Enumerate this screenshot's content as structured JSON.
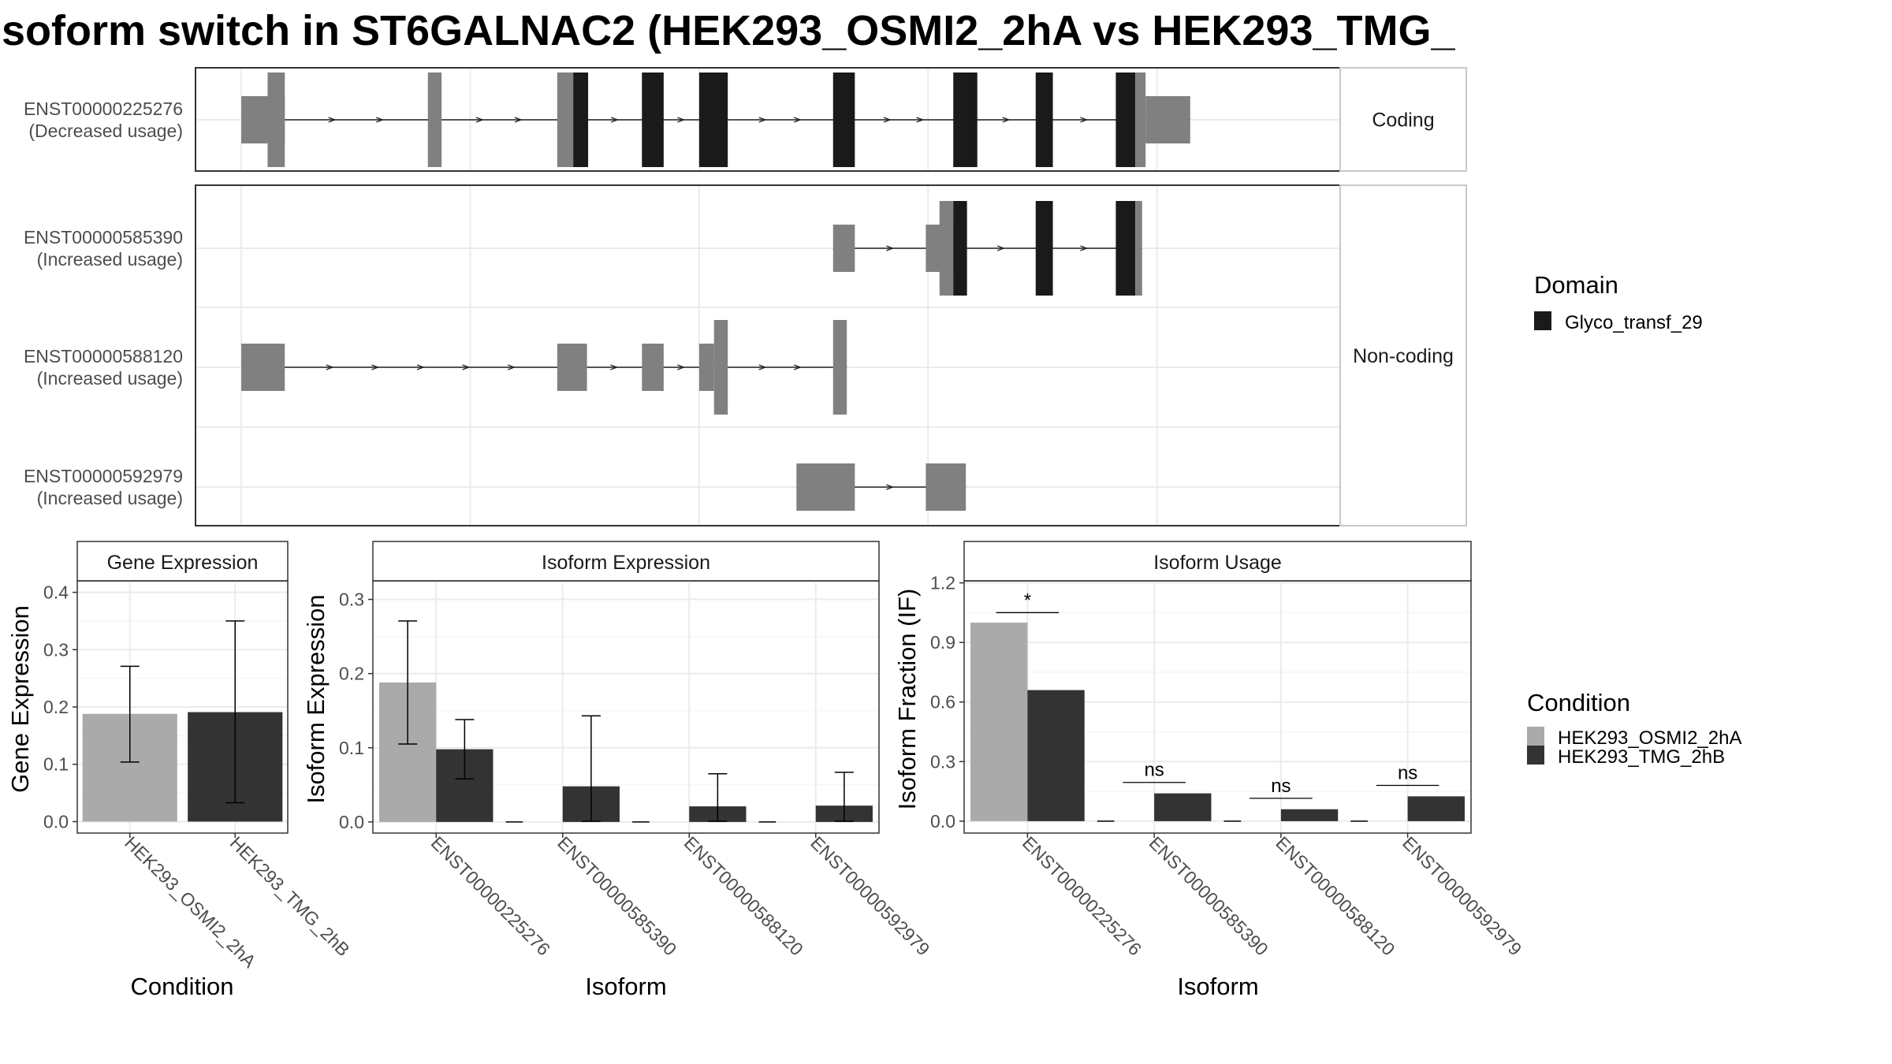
{
  "title": "soform switch in ST6GALNAC2 (HEK293_OSMI2_2hA vs HEK293_TMG_",
  "colors": {
    "domain": "#1a1a1a",
    "exon": "#808080",
    "cond_a": "#aaaaaa",
    "cond_b": "#333333",
    "grid": "#ebebeb",
    "strip_bg": "#ffffff",
    "panel_border": "#333333"
  },
  "structure": {
    "x_range": [
      0,
      100
    ],
    "facets": [
      {
        "label": "Coding"
      },
      {
        "label": "Non-coding"
      }
    ],
    "isoforms": [
      {
        "id": "ENST00000225276",
        "usage": "(Decreased usage)",
        "facet": 0,
        "features": [
          {
            "start": 4,
            "end": 7.8,
            "kind": "utr"
          },
          {
            "start": 6.3,
            "end": 7.8,
            "kind": "exon"
          },
          {
            "start": 20.3,
            "end": 21.5,
            "kind": "exon"
          },
          {
            "start": 31.6,
            "end": 33,
            "kind": "exon"
          },
          {
            "start": 33,
            "end": 34.3,
            "kind": "domain"
          },
          {
            "start": 39,
            "end": 40.9,
            "kind": "domain"
          },
          {
            "start": 44,
            "end": 46.5,
            "kind": "domain"
          },
          {
            "start": 55.7,
            "end": 57.6,
            "kind": "domain"
          },
          {
            "start": 66.2,
            "end": 68.3,
            "kind": "domain"
          },
          {
            "start": 73.4,
            "end": 74.9,
            "kind": "domain"
          },
          {
            "start": 80.4,
            "end": 82.1,
            "kind": "domain"
          },
          {
            "start": 82.1,
            "end": 83,
            "kind": "exon"
          },
          {
            "start": 83,
            "end": 86.9,
            "kind": "utr"
          }
        ]
      },
      {
        "id": "ENST00000585390",
        "usage": "(Increased usage)",
        "facet": 1,
        "features": [
          {
            "start": 55.7,
            "end": 57.6,
            "kind": "utr"
          },
          {
            "start": 63.8,
            "end": 66.2,
            "kind": "utr"
          },
          {
            "start": 65,
            "end": 66.2,
            "kind": "exon"
          },
          {
            "start": 66.2,
            "end": 67.4,
            "kind": "domain"
          },
          {
            "start": 73.4,
            "end": 74.9,
            "kind": "domain"
          },
          {
            "start": 80.4,
            "end": 82.1,
            "kind": "domain"
          },
          {
            "start": 82.1,
            "end": 82.7,
            "kind": "exon"
          }
        ]
      },
      {
        "id": "ENST00000588120",
        "usage": "(Increased usage)",
        "facet": 1,
        "features": [
          {
            "start": 4,
            "end": 7.8,
            "kind": "utr"
          },
          {
            "start": 31.6,
            "end": 34.2,
            "kind": "utr"
          },
          {
            "start": 39,
            "end": 40.9,
            "kind": "utr"
          },
          {
            "start": 44,
            "end": 45.3,
            "kind": "utr"
          },
          {
            "start": 45.3,
            "end": 46.5,
            "kind": "exon"
          },
          {
            "start": 55.7,
            "end": 56.9,
            "kind": "exon"
          }
        ]
      },
      {
        "id": "ENST00000592979",
        "usage": "(Increased usage)",
        "facet": 1,
        "features": [
          {
            "start": 52.5,
            "end": 57.6,
            "kind": "utr"
          },
          {
            "start": 63.8,
            "end": 67.3,
            "kind": "utr"
          }
        ]
      }
    ]
  },
  "legend_domain": {
    "title": "Domain",
    "items": [
      "Glyco_transf_29"
    ]
  },
  "legend_condition": {
    "title": "Condition",
    "items": [
      "HEK293_OSMI2_2hA",
      "HEK293_TMG_2hB"
    ]
  },
  "chart_data": [
    {
      "type": "bar",
      "title": "Gene Expression",
      "xlabel": "Condition",
      "ylabel": "Gene Expression",
      "categories": [
        "HEK293_OSMI2_2hA",
        "HEK293_TMG_2hB"
      ],
      "values": [
        0.188,
        0.191
      ],
      "error": [
        [
          0.104,
          0.271
        ],
        [
          0.033,
          0.35
        ]
      ],
      "yticks": [
        "0.0",
        "0.1",
        "0.2",
        "0.3",
        "0.4"
      ],
      "ylim": [
        -0.02,
        0.42
      ]
    },
    {
      "type": "bar",
      "title": "Isoform Expression",
      "xlabel": "Isoform",
      "ylabel": "Isoform Expression",
      "categories": [
        "ENST00000225276",
        "ENST00000585390",
        "ENST00000588120",
        "ENST00000592979"
      ],
      "series": [
        {
          "name": "HEK293_OSMI2_2hA",
          "values": [
            0.188,
            0,
            0,
            0
          ],
          "error": [
            [
              0.105,
              0.271
            ],
            null,
            null,
            null
          ]
        },
        {
          "name": "HEK293_TMG_2hB",
          "values": [
            0.098,
            0.048,
            0.021,
            0.022
          ],
          "error": [
            [
              0.058,
              0.138
            ],
            [
              0.001,
              0.143
            ],
            [
              0.001,
              0.065
            ],
            [
              0.001,
              0.067
            ]
          ]
        }
      ],
      "yticks": [
        "0.0",
        "0.1",
        "0.2",
        "0.3"
      ],
      "ylim": [
        -0.015,
        0.325
      ]
    },
    {
      "type": "bar",
      "title": "Isoform Usage",
      "xlabel": "Isoform",
      "ylabel": "Isoform Fraction (IF)",
      "categories": [
        "ENST00000225276",
        "ENST00000585390",
        "ENST00000588120",
        "ENST00000592979"
      ],
      "series": [
        {
          "name": "HEK293_OSMI2_2hA",
          "values": [
            1.0,
            0,
            0,
            0
          ]
        },
        {
          "name": "HEK293_TMG_2hB",
          "values": [
            0.66,
            0.14,
            0.06,
            0.125
          ]
        }
      ],
      "annotations": [
        "*",
        "ns",
        "ns",
        "ns"
      ],
      "annotation_levels": [
        1.05,
        0.195,
        0.115,
        0.18
      ],
      "yticks": [
        "0.0",
        "0.3",
        "0.6",
        "0.9",
        "1.2"
      ],
      "ylim": [
        -0.06,
        1.21
      ]
    }
  ]
}
